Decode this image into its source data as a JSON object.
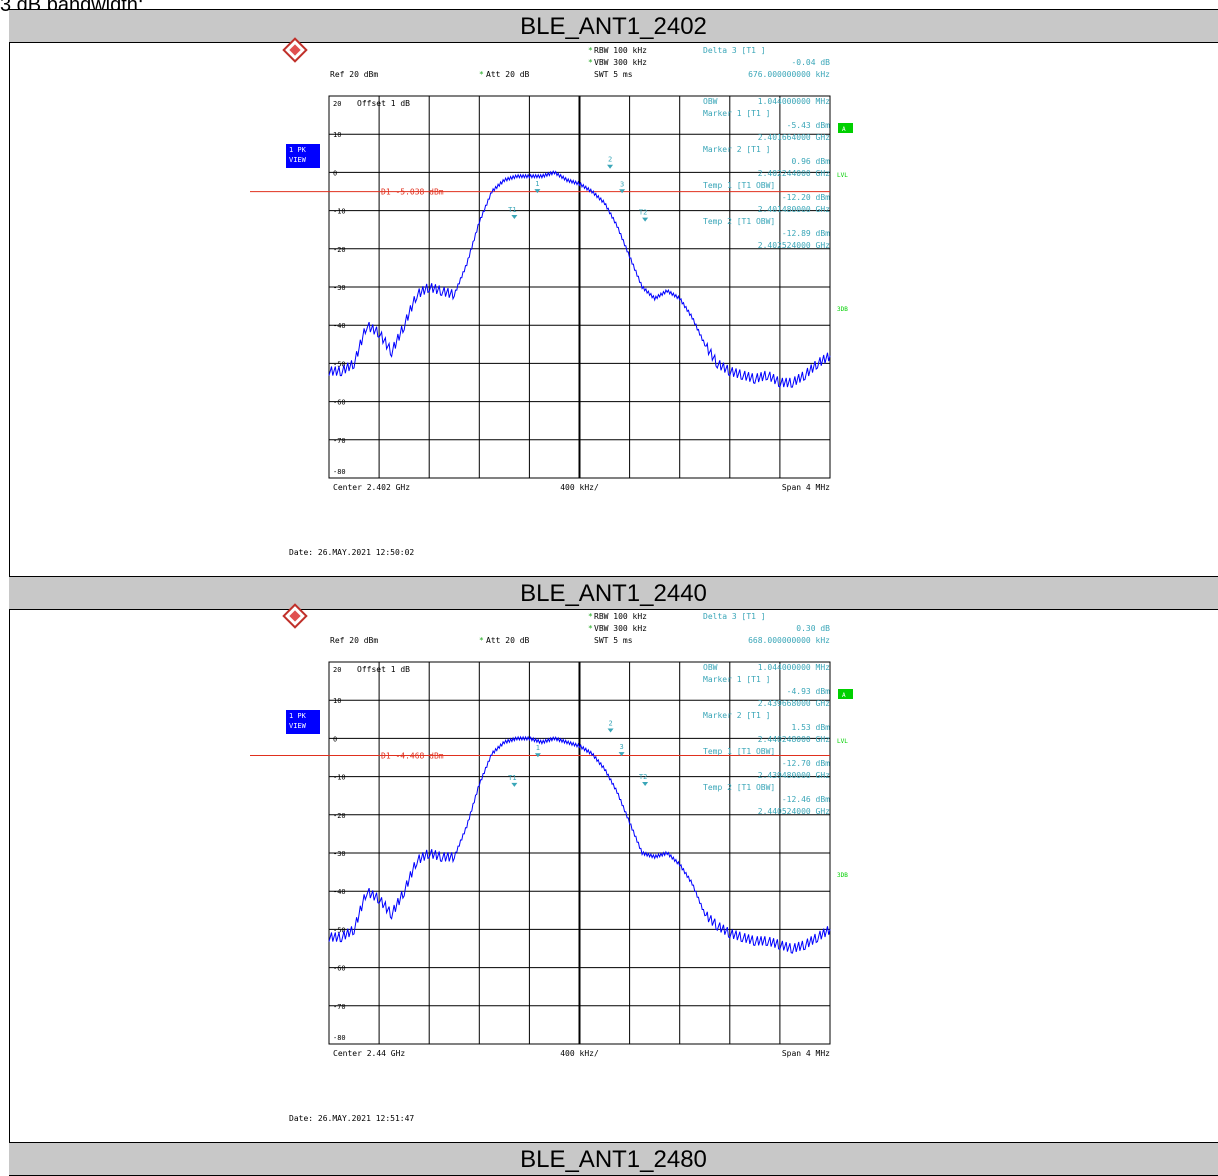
{
  "caption": "3 dB bandwidth:",
  "colors": {
    "trace": "#0000ff",
    "cyan": "#3aa6b8",
    "red": "#e0301e",
    "header_bg": "#c8c8c8",
    "green": "#00d000"
  },
  "sections": [
    {
      "title": "BLE_ANT1_2402",
      "info": {
        "ref": "Ref  20 dBm",
        "att": "Att  20 dB",
        "rbw": "RBW 100 kHz",
        "vbw": "VBW 300 kHz",
        "swt": "SWT 5 ms",
        "delta_label": "Delta 3 [T1 ]",
        "delta_value": "-0.04 dB",
        "delta_freq": "676.000000000 kHz",
        "offset": "Offset  1 dB",
        "center": "Center 2.402 GHz",
        "per_div": "400 kHz/",
        "span": "Span 4 MHz",
        "d1": "D1 -5.038 dBm",
        "obw_label": "OBW",
        "obw_value": "1.044000000 MHz",
        "m1_label": "Marker 1 [T1 ]",
        "m1_level": "-5.43 dBm",
        "m1_freq": "2.401664000 GHz",
        "m2_label": "Marker 2 [T1 ]",
        "m2_level": "0.96 dBm",
        "m2_freq": "2.402244000 GHz",
        "t1_label": "Temp 1 [T1 OBW]",
        "t1_level": "-12.20 dBm",
        "t1_freq": "2.401480000 GHz",
        "t2_label": "Temp 2 [T1 OBW]",
        "t2_level": "-12.89 dBm",
        "t2_freq": "2.402524000 GHz",
        "date": "Date: 26.MAY.2021  12:50:02"
      },
      "chart_data": {
        "type": "line",
        "ylim": [
          -80,
          20
        ],
        "x_span_mhz": 4,
        "yticks": [
          20,
          10,
          0,
          -10,
          -20,
          -30,
          -40,
          -50,
          -60,
          -70,
          -80
        ],
        "display_line_dbm": -5.038,
        "series": [
          {
            "x": [
              -2.0,
              -1.9,
              -1.8,
              -1.7,
              -1.6,
              -1.5,
              -1.4,
              -1.3,
              -1.2,
              -1.1,
              -1.0,
              -0.9,
              -0.8,
              -0.7,
              -0.6,
              -0.5,
              -0.4,
              -0.3,
              -0.2,
              -0.1,
              0.0,
              0.1,
              0.2,
              0.3,
              0.4,
              0.5,
              0.6,
              0.7,
              0.8,
              0.9,
              1.0,
              1.1,
              1.2,
              1.3,
              1.4,
              1.5,
              1.6,
              1.7,
              1.8,
              1.9,
              2.0
            ],
            "values": [
              -52,
              -52,
              -50,
              -40,
              -42,
              -47,
              -40,
              -32,
              -30,
              -31,
              -32,
              -24,
              -13,
              -5,
              -2,
              -1,
              -1,
              -1,
              0,
              -2,
              -3,
              -5,
              -8,
              -14,
              -22,
              -30,
              -33,
              -31,
              -33,
              -38,
              -45,
              -50,
              -52,
              -53,
              -54,
              -53,
              -55,
              -55,
              -53,
              -50,
              -48
            ]
          }
        ],
        "markers": [
          {
            "label": "1",
            "x_mhz": -0.336,
            "level": -5.43
          },
          {
            "label": "2",
            "x_mhz": 0.244,
            "level": 0.96
          },
          {
            "label": "3",
            "x_mhz": 0.34,
            "level": -5.47
          },
          {
            "label": "T1",
            "x_mhz": -0.52,
            "level": -12.2
          },
          {
            "label": "T2",
            "x_mhz": 0.524,
            "level": -12.89
          }
        ]
      }
    },
    {
      "title": "BLE_ANT1_2440",
      "info": {
        "ref": "Ref  20 dBm",
        "att": "Att  20 dB",
        "rbw": "RBW 100 kHz",
        "vbw": "VBW 300 kHz",
        "swt": "SWT 5 ms",
        "delta_label": "Delta 3 [T1 ]",
        "delta_value": "0.30 dB",
        "delta_freq": "668.000000000 kHz",
        "offset": "Offset  1 dB",
        "center": "Center 2.44 GHz",
        "per_div": "400 kHz/",
        "span": "Span 4 MHz",
        "d1": "D1 -4.468 dBm",
        "obw_label": "OBW",
        "obw_value": "1.044000000 MHz",
        "m1_label": "Marker 1 [T1 ]",
        "m1_level": "-4.93 dBm",
        "m1_freq": "2.439668000 GHz",
        "m2_label": "Marker 2 [T1 ]",
        "m2_level": "1.53 dBm",
        "m2_freq": "2.440248000 GHz",
        "t1_label": "Temp 1 [T1 OBW]",
        "t1_level": "-12.70 dBm",
        "t1_freq": "2.439480000 GHz",
        "t2_label": "Temp 2 [T1 OBW]",
        "t2_level": "-12.46 dBm",
        "t2_freq": "2.440524000 GHz",
        "date": "Date: 26.MAY.2021  12:51:47"
      },
      "chart_data": {
        "type": "line",
        "ylim": [
          -80,
          20
        ],
        "x_span_mhz": 4,
        "yticks": [
          20,
          10,
          0,
          -10,
          -20,
          -30,
          -40,
          -50,
          -60,
          -70,
          -80
        ],
        "display_line_dbm": -4.468,
        "series": [
          {
            "x": [
              -2.0,
              -1.9,
              -1.8,
              -1.7,
              -1.6,
              -1.5,
              -1.4,
              -1.3,
              -1.2,
              -1.1,
              -1.0,
              -0.9,
              -0.8,
              -0.7,
              -0.6,
              -0.5,
              -0.4,
              -0.3,
              -0.2,
              -0.1,
              0.0,
              0.1,
              0.2,
              0.3,
              0.4,
              0.5,
              0.6,
              0.7,
              0.8,
              0.9,
              1.0,
              1.1,
              1.2,
              1.3,
              1.4,
              1.5,
              1.6,
              1.7,
              1.8,
              1.9,
              2.0
            ],
            "values": [
              -52,
              -52,
              -50,
              -40,
              -42,
              -46,
              -40,
              -32,
              -30,
              -31,
              -31,
              -23,
              -12,
              -4,
              -1,
              0,
              0,
              -1,
              0,
              -1,
              -2,
              -4,
              -8,
              -14,
              -22,
              -30,
              -31,
              -30,
              -33,
              -38,
              -46,
              -49,
              -51,
              -52,
              -53,
              -53,
              -54,
              -55,
              -54,
              -52,
              -50
            ]
          }
        ],
        "markers": [
          {
            "label": "1",
            "x_mhz": -0.332,
            "level": -4.93
          },
          {
            "label": "2",
            "x_mhz": 0.248,
            "level": 1.53
          },
          {
            "label": "3",
            "x_mhz": 0.336,
            "level": -4.63
          },
          {
            "label": "T1",
            "x_mhz": -0.52,
            "level": -12.7
          },
          {
            "label": "T2",
            "x_mhz": 0.524,
            "level": -12.46
          }
        ]
      }
    },
    {
      "title": "BLE_ANT1_2480"
    }
  ]
}
